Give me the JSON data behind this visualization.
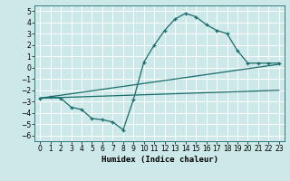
{
  "title": "",
  "xlabel": "Humidex (Indice chaleur)",
  "ylabel": "",
  "xlim": [
    -0.5,
    23.5
  ],
  "ylim": [
    -6.5,
    5.5
  ],
  "yticks": [
    -6,
    -5,
    -4,
    -3,
    -2,
    -1,
    0,
    1,
    2,
    3,
    4,
    5
  ],
  "xticks": [
    0,
    1,
    2,
    3,
    4,
    5,
    6,
    7,
    8,
    9,
    10,
    11,
    12,
    13,
    14,
    15,
    16,
    17,
    18,
    19,
    20,
    21,
    22,
    23
  ],
  "bg_color": "#cce8e8",
  "line_color": "#1a6b6b",
  "grid_color": "#ffffff",
  "line1_x": [
    0,
    1,
    2,
    3,
    4,
    5,
    6,
    7,
    8,
    9,
    10,
    11,
    12,
    13,
    14,
    15,
    16,
    17,
    18,
    19,
    20,
    21,
    22,
    23
  ],
  "line1_y": [
    -2.7,
    -2.6,
    -2.7,
    -3.5,
    -3.7,
    -4.5,
    -4.6,
    -4.8,
    -5.5,
    -2.8,
    0.5,
    2.0,
    3.3,
    4.3,
    4.8,
    4.5,
    3.8,
    3.3,
    3.0,
    1.5,
    0.4,
    0.4,
    0.4,
    0.4
  ],
  "line2_x": [
    0,
    23
  ],
  "line2_y": [
    -2.7,
    0.3
  ],
  "line3_x": [
    0,
    23
  ],
  "line3_y": [
    -2.7,
    -2.0
  ]
}
